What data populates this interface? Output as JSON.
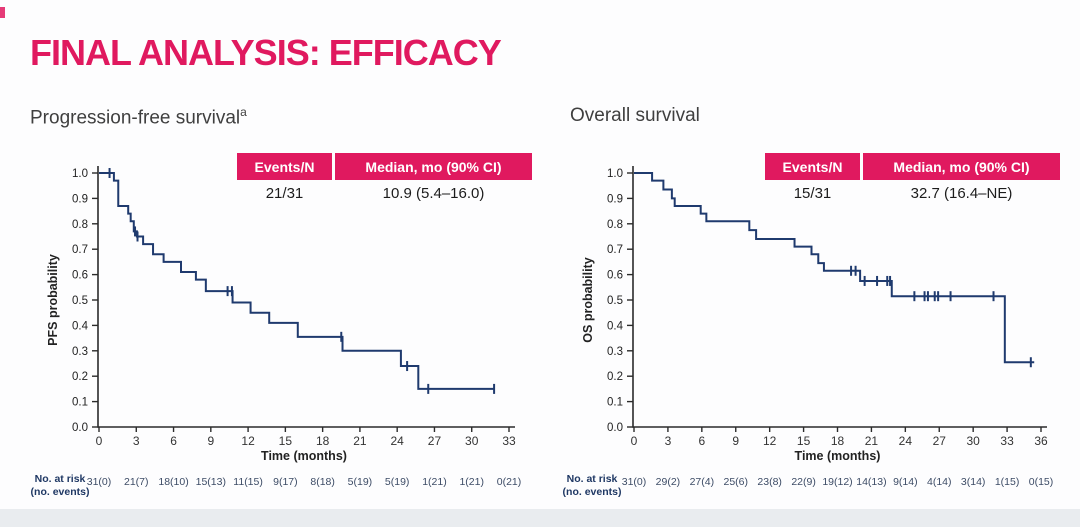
{
  "page": {
    "title": "FINAL ANALYSIS: EFFICACY"
  },
  "colors": {
    "accent": "#e0195f",
    "curve": "#1f3a6e",
    "axis": "#2b2b2b",
    "risk_label": "#1f3864",
    "risk_value": "#3d4c66",
    "footer_bar": "#e9ecef"
  },
  "chart_data": [
    {
      "type": "line",
      "km_style": "step",
      "title": "Progression-free survival",
      "title_superscript": "a",
      "stats_table": {
        "headers": [
          "Events/N",
          "Median, mo (90% CI)"
        ],
        "events_n": "21/31",
        "median_90ci": "10.9 (5.4–16.0)"
      },
      "xlabel": "Time (months)",
      "ylabel": "PFS probability",
      "xlim": [
        0,
        33
      ],
      "ylim": [
        0.0,
        1.0
      ],
      "xtick_step": 3,
      "ytick_step": 0.1,
      "steps": [
        [
          0,
          1.0
        ],
        [
          1.2,
          0.97
        ],
        [
          1.55,
          0.87
        ],
        [
          2.35,
          0.84
        ],
        [
          2.55,
          0.81
        ],
        [
          2.8,
          0.77
        ],
        [
          3.05,
          0.75
        ],
        [
          3.55,
          0.72
        ],
        [
          4.35,
          0.68
        ],
        [
          5.2,
          0.65
        ],
        [
          6.6,
          0.61
        ],
        [
          7.8,
          0.58
        ],
        [
          8.6,
          0.535
        ],
        [
          10.75,
          0.49
        ],
        [
          12.2,
          0.45
        ],
        [
          13.7,
          0.41
        ],
        [
          16.0,
          0.355
        ],
        [
          19.6,
          0.3
        ],
        [
          24.3,
          0.24
        ],
        [
          25.7,
          0.15
        ]
      ],
      "end_time": 31.8,
      "censor_marks": [
        [
          0.85,
          1.0
        ],
        [
          2.9,
          0.77
        ],
        [
          3.1,
          0.75
        ],
        [
          10.35,
          0.535
        ],
        [
          10.7,
          0.535
        ],
        [
          19.5,
          0.355
        ],
        [
          24.8,
          0.24
        ],
        [
          26.5,
          0.15
        ],
        [
          31.8,
          0.15
        ]
      ],
      "risk_label": [
        "No. at risk",
        "(no. events)"
      ],
      "risk_times": [
        0,
        3,
        6,
        9,
        12,
        15,
        18,
        21,
        24,
        27,
        30,
        33
      ],
      "risk_values": [
        "31(0)",
        "21(7)",
        "18(10)",
        "15(13)",
        "11(15)",
        "9(17)",
        "8(18)",
        "5(19)",
        "5(19)",
        "1(21)",
        "1(21)",
        "0(21)"
      ]
    },
    {
      "type": "line",
      "km_style": "step",
      "title": "Overall survival",
      "title_superscript": "",
      "stats_table": {
        "headers": [
          "Events/N",
          "Median, mo (90% CI)"
        ],
        "events_n": "15/31",
        "median_90ci": "32.7 (16.4–NE)"
      },
      "xlabel": "Time (months)",
      "ylabel": "OS probability",
      "xlim": [
        0,
        36
      ],
      "ylim": [
        0.0,
        1.0
      ],
      "xtick_step": 3,
      "ytick_step": 0.1,
      "steps": [
        [
          0,
          1.0
        ],
        [
          1.6,
          0.97
        ],
        [
          2.6,
          0.935
        ],
        [
          3.35,
          0.9
        ],
        [
          3.6,
          0.87
        ],
        [
          5.9,
          0.84
        ],
        [
          6.4,
          0.81
        ],
        [
          10.2,
          0.775
        ],
        [
          10.8,
          0.74
        ],
        [
          14.2,
          0.71
        ],
        [
          15.7,
          0.68
        ],
        [
          16.3,
          0.645
        ],
        [
          16.8,
          0.615
        ],
        [
          20.0,
          0.575
        ],
        [
          22.8,
          0.515
        ],
        [
          32.8,
          0.255
        ]
      ],
      "end_time": 35.4,
      "censor_marks": [
        [
          19.2,
          0.615
        ],
        [
          19.6,
          0.615
        ],
        [
          20.4,
          0.575
        ],
        [
          21.5,
          0.575
        ],
        [
          22.4,
          0.575
        ],
        [
          22.65,
          0.575
        ],
        [
          24.8,
          0.515
        ],
        [
          25.7,
          0.515
        ],
        [
          26.0,
          0.515
        ],
        [
          26.6,
          0.515
        ],
        [
          26.9,
          0.515
        ],
        [
          28.0,
          0.515
        ],
        [
          31.8,
          0.515
        ],
        [
          35.1,
          0.255
        ]
      ],
      "risk_label": [
        "No. at risk",
        "(no. events)"
      ],
      "risk_times": [
        0,
        3,
        6,
        9,
        12,
        15,
        18,
        21,
        24,
        27,
        30,
        33,
        36
      ],
      "risk_values": [
        "31(0)",
        "29(2)",
        "27(4)",
        "25(6)",
        "23(8)",
        "22(9)",
        "19(12)",
        "14(13)",
        "9(14)",
        "4(14)",
        "3(14)",
        "1(15)",
        "0(15)"
      ]
    }
  ]
}
